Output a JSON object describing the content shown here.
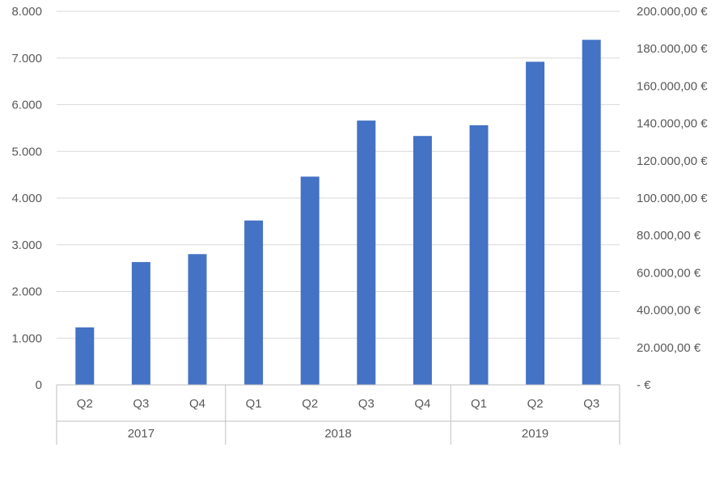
{
  "colors": {
    "bar": "#4472c4",
    "grid": "#d9d9d9",
    "text": "#595959",
    "background": "#ffffff"
  },
  "chart_data": {
    "type": "bar",
    "title": "",
    "xlabel": "",
    "ylabel": "",
    "grid": true,
    "legend": "none",
    "categories": [
      "Q2",
      "Q3",
      "Q4",
      "Q1",
      "Q2",
      "Q3",
      "Q4",
      "Q1",
      "Q2",
      "Q3"
    ],
    "groups": [
      {
        "label": "2017",
        "count": 3
      },
      {
        "label": "2018",
        "count": 4
      },
      {
        "label": "2019",
        "count": 3
      }
    ],
    "series": [
      {
        "values": [
          1230,
          2630,
          2800,
          3520,
          4460,
          5660,
          5330,
          5560,
          6920,
          7390
        ]
      }
    ],
    "ylim": [
      0,
      8000
    ],
    "y_ticks": [
      {
        "value": 0,
        "label": "0"
      },
      {
        "value": 1000,
        "label": "1.000"
      },
      {
        "value": 2000,
        "label": "2.000"
      },
      {
        "value": 3000,
        "label": "3.000"
      },
      {
        "value": 4000,
        "label": "4.000"
      },
      {
        "value": 5000,
        "label": "5.000"
      },
      {
        "value": 6000,
        "label": "6.000"
      },
      {
        "value": 7000,
        "label": "7.000"
      },
      {
        "value": 8000,
        "label": "8.000"
      }
    ],
    "y2lim": [
      0,
      200000
    ],
    "y2_ticks": [
      {
        "value": 0,
        "label": "-   €"
      },
      {
        "value": 20000,
        "label": "20.000,00 €"
      },
      {
        "value": 40000,
        "label": "40.000,00 €"
      },
      {
        "value": 60000,
        "label": "60.000,00 €"
      },
      {
        "value": 80000,
        "label": "80.000,00 €"
      },
      {
        "value": 100000,
        "label": "100.000,00 €"
      },
      {
        "value": 120000,
        "label": "120.000,00 €"
      },
      {
        "value": 140000,
        "label": "140.000,00 €"
      },
      {
        "value": 160000,
        "label": "160.000,00 €"
      },
      {
        "value": 180000,
        "label": "180.000,00 €"
      },
      {
        "value": 200000,
        "label": "200.000,00 €"
      }
    ]
  }
}
